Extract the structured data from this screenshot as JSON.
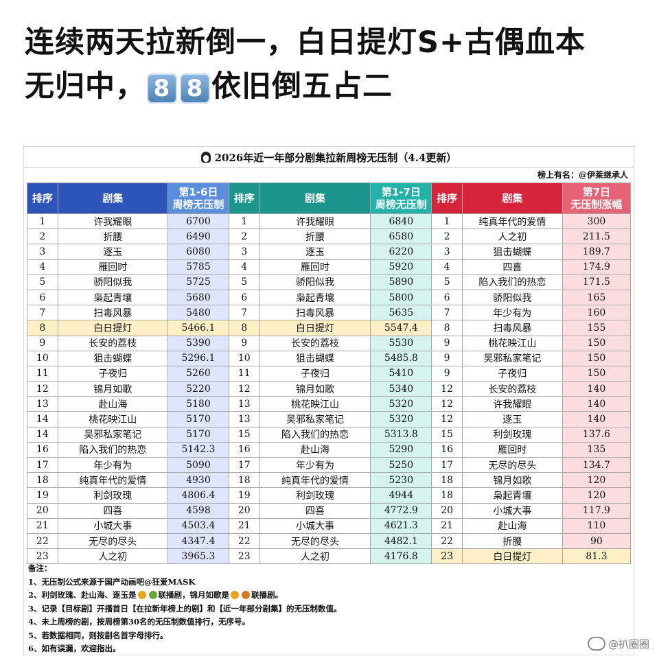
{
  "headline": {
    "line1": "连续两天拉新倒一，白日提灯S+古偶血本",
    "line2_a": "无归中，",
    "badge_digit": "8",
    "line2_b": "依旧倒五占二"
  },
  "card": {
    "title": "2026年近一年部分剧集拉新周榜无压制（4.4更新）",
    "subtitle": "榜上有名：@伊莱继承人",
    "headers": {
      "rank": "排序",
      "series": "剧集",
      "col3_l1": "第1-6日",
      "col3_l2": "周榜无压制",
      "col6_l1": "第1-7日",
      "col6_l2": "周榜无压制",
      "col9_l1": "第7日",
      "col9_l2": "无压制涨幅"
    },
    "rows": [
      [
        "1",
        "许我耀眼",
        "6700",
        "1",
        "许我耀眼",
        "6840",
        "1",
        "纯真年代的爱情",
        "300"
      ],
      [
        "2",
        "折腰",
        "6490",
        "2",
        "折腰",
        "6580",
        "2",
        "人之初",
        "211.5"
      ],
      [
        "3",
        "逐玉",
        "6080",
        "3",
        "逐玉",
        "6220",
        "3",
        "狙击蝴蝶",
        "189.7"
      ],
      [
        "4",
        "雁回时",
        "5785",
        "4",
        "雁回时",
        "5920",
        "4",
        "四喜",
        "174.9"
      ],
      [
        "5",
        "骄阳似我",
        "5725",
        "5",
        "骄阳似我",
        "5890",
        "5",
        "陷入我们的热恋",
        "171.5"
      ],
      [
        "6",
        "枭起青壤",
        "5680",
        "6",
        "枭起青壤",
        "5800",
        "6",
        "骄阳似我",
        "165"
      ],
      [
        "7",
        "扫毒风暴",
        "5480",
        "7",
        "扫毒风暴",
        "5635",
        "7",
        "年少有为",
        "160"
      ],
      [
        "8",
        "白日提灯",
        "5466.1",
        "8",
        "白日提灯",
        "5547.4",
        "8",
        "扫毒风暴",
        "155"
      ],
      [
        "9",
        "长安的荔枝",
        "5390",
        "9",
        "长安的荔枝",
        "5530",
        "9",
        "桃花映江山",
        "150"
      ],
      [
        "10",
        "狙击蝴蝶",
        "5296.1",
        "10",
        "狙击蝴蝶",
        "5485.8",
        "9",
        "吴邪私家笔记",
        "150"
      ],
      [
        "11",
        "子夜归",
        "5260",
        "11",
        "子夜归",
        "5410",
        "9",
        "子夜归",
        "150"
      ],
      [
        "12",
        "锦月如歌",
        "5220",
        "12",
        "锦月如歌",
        "5340",
        "12",
        "长安的荔枝",
        "140"
      ],
      [
        "13",
        "赴山海",
        "5180",
        "13",
        "桃花映江山",
        "5320",
        "12",
        "许我耀眼",
        "140"
      ],
      [
        "14",
        "桃花映江山",
        "5170",
        "13",
        "吴邪私家笔记",
        "5320",
        "12",
        "逐玉",
        "140"
      ],
      [
        "14",
        "吴邪私家笔记",
        "5170",
        "15",
        "陷入我们的热恋",
        "5313.8",
        "15",
        "利剑玫瑰",
        "137.6"
      ],
      [
        "16",
        "陷入我们的热恋",
        "5142.3",
        "16",
        "赴山海",
        "5290",
        "16",
        "雁回时",
        "135"
      ],
      [
        "17",
        "年少有为",
        "5090",
        "17",
        "年少有为",
        "5250",
        "17",
        "无尽的尽头",
        "134.7"
      ],
      [
        "18",
        "纯真年代的爱情",
        "4930",
        "18",
        "纯真年代的爱情",
        "5230",
        "18",
        "锦月如歌",
        "120"
      ],
      [
        "19",
        "利剑玫瑰",
        "4806.4",
        "19",
        "利剑玫瑰",
        "4944",
        "18",
        "枭起青壤",
        "120"
      ],
      [
        "20",
        "四喜",
        "4598",
        "20",
        "四喜",
        "4772.9",
        "20",
        "小城大事",
        "117.9"
      ],
      [
        "21",
        "小城大事",
        "4503.4",
        "21",
        "小城大事",
        "4621.3",
        "21",
        "赴山海",
        "110"
      ],
      [
        "22",
        "无尽的尽头",
        "4347.4",
        "22",
        "无尽的尽头",
        "4482.1",
        "22",
        "折腰",
        "90"
      ],
      [
        "23",
        "人之初",
        "3965.3",
        "23",
        "人之初",
        "4176.8",
        "23",
        "白日提灯",
        "81.3"
      ]
    ],
    "notes": {
      "title": "备注：",
      "n1": "1、无压制公式来源于国产动画吧@狂爱MASK",
      "n2_a": "2、利剑玫瑰、赴山海、逐玉是",
      "n2_b": "联播剧，锦月如歌是",
      "n2_c": "联播剧。",
      "n3": "3、记录【目标剧】开播首日【在拉新年榜上的剧】和【近一年部分剧集】的无压制数值。",
      "n4": "4、未上周榜的剧，按周榜第30名的无压制数值排行，无序号。",
      "n5": "5、若数据相同，则按剧名首字母排行。",
      "n6": "6、如有误漏，欢迎指出。"
    }
  },
  "watermark": "@扒圈圈",
  "icons": [
    "penguin-icon",
    "platform-a-icon",
    "platform-b-icon",
    "platform-c-icon",
    "weibo-logo-icon"
  ]
}
